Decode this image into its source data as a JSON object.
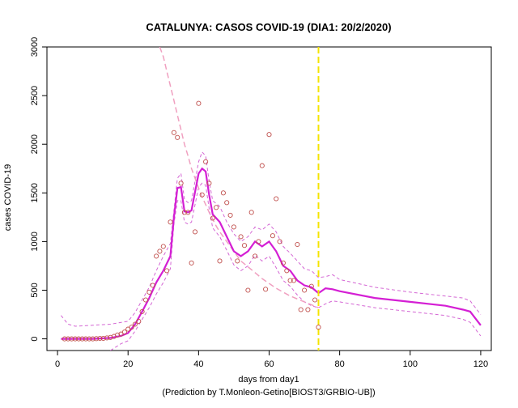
{
  "chart_data": {
    "type": "scatter",
    "title": "CATALUNYA: CASOS COVID-19 (DIA1: 20/2/2020)",
    "xlabel": "days from day1",
    "xlabel2": "(Prediction by T.Monleon-Getino[BIOST3/GRBIO-UB])",
    "ylabel": "cases COVID-19",
    "xlim": [
      -3,
      123
    ],
    "ylim": [
      -120,
      3000
    ],
    "x_ticks": [
      0,
      20,
      40,
      60,
      80,
      100,
      120
    ],
    "y_ticks": [
      0,
      500,
      1000,
      1500,
      2000,
      2500,
      3000
    ],
    "grid": false,
    "vline_x": 74,
    "colors": {
      "points": "#c0504d",
      "fit": "#d41fd4",
      "band": "#d466d4",
      "curve": "#f0a0c0",
      "vline": "#f5e400"
    },
    "series": [
      {
        "kind": "observed",
        "x": [
          2,
          3,
          4,
          5,
          6,
          7,
          8,
          9,
          10,
          11,
          12,
          13,
          14,
          15,
          16,
          17,
          18,
          19,
          20,
          21,
          22,
          23,
          24,
          25,
          26,
          27,
          28,
          29,
          30,
          31,
          32,
          33,
          34,
          35,
          36,
          37,
          38,
          39,
          40,
          41,
          42,
          43,
          44,
          45,
          46,
          47,
          48,
          49,
          50,
          51,
          52,
          53,
          54,
          55,
          56,
          57,
          58,
          59,
          60,
          61,
          62,
          63,
          64,
          65,
          66,
          67,
          68,
          69,
          70,
          71,
          72,
          73,
          74
        ],
        "y": [
          0,
          0,
          0,
          0,
          0,
          0,
          0,
          0,
          0,
          2,
          5,
          5,
          10,
          15,
          25,
          40,
          50,
          70,
          100,
          120,
          150,
          180,
          280,
          400,
          480,
          550,
          850,
          900,
          950,
          700,
          1200,
          2120,
          2070,
          1600,
          1300,
          1300,
          780,
          1100,
          2420,
          1480,
          1820,
          1600,
          1240,
          1350,
          800,
          1500,
          1400,
          1270,
          1150,
          800,
          1050,
          960,
          500,
          1300,
          850,
          1000,
          1780,
          510,
          2100,
          1060,
          1440,
          1000,
          780,
          700,
          600,
          600,
          970,
          300,
          500,
          300,
          540,
          400,
          120
        ]
      },
      {
        "kind": "fit",
        "x": [
          1,
          5,
          10,
          15,
          18,
          20,
          22,
          24,
          26,
          28,
          30,
          32,
          33,
          34,
          35,
          36,
          37,
          38,
          40,
          41,
          42,
          43,
          44,
          46,
          48,
          50,
          52,
          54,
          56,
          58,
          60,
          62,
          64,
          66,
          68,
          70,
          72,
          74,
          76,
          78,
          80,
          90,
          100,
          110,
          115,
          117,
          120
        ],
        "y": [
          0,
          0,
          0,
          10,
          30,
          60,
          150,
          280,
          420,
          580,
          700,
          850,
          1250,
          1550,
          1560,
          1310,
          1300,
          1320,
          1700,
          1750,
          1720,
          1480,
          1280,
          1200,
          1050,
          900,
          850,
          900,
          1000,
          950,
          1000,
          900,
          750,
          700,
          600,
          550,
          530,
          470,
          520,
          510,
          490,
          420,
          380,
          340,
          300,
          280,
          140
        ]
      },
      {
        "kind": "fit-upper",
        "x": [
          1,
          3,
          5,
          10,
          15,
          20,
          22,
          24,
          26,
          28,
          30,
          32,
          33,
          34,
          35,
          36,
          37,
          38,
          40,
          41,
          42,
          43,
          44,
          46,
          48,
          50,
          52,
          54,
          56,
          58,
          60,
          62,
          64,
          66,
          68,
          70,
          72,
          74,
          76,
          78,
          80,
          90,
          100,
          110,
          115,
          117,
          120
        ],
        "y": [
          240,
          150,
          130,
          140,
          150,
          180,
          270,
          400,
          530,
          700,
          850,
          980,
          1320,
          1650,
          1700,
          1430,
          1400,
          1420,
          1820,
          1920,
          1880,
          1620,
          1420,
          1360,
          1200,
          1080,
          1000,
          1050,
          1150,
          1120,
          1180,
          1100,
          950,
          880,
          800,
          720,
          700,
          630,
          640,
          660,
          610,
          530,
          480,
          440,
          420,
          390,
          250
        ]
      },
      {
        "kind": "fit-lower",
        "x": [
          15,
          18,
          20,
          22,
          24,
          26,
          28,
          30,
          32,
          33,
          34,
          35,
          36,
          37,
          38,
          40,
          41,
          42,
          43,
          44,
          46,
          48,
          50,
          52,
          54,
          56,
          58,
          60,
          62,
          64,
          66,
          68,
          70,
          72,
          74,
          76,
          78,
          80,
          90,
          100,
          110,
          115,
          117,
          120
        ],
        "y": [
          -120,
          -50,
          -20,
          80,
          200,
          320,
          460,
          580,
          720,
          1180,
          1420,
          1420,
          1200,
          1180,
          1200,
          1560,
          1600,
          1580,
          1340,
          1140,
          1050,
          910,
          760,
          700,
          750,
          860,
          800,
          850,
          730,
          600,
          540,
          450,
          380,
          340,
          320,
          360,
          390,
          380,
          320,
          280,
          240,
          200,
          170,
          30
        ]
      },
      {
        "kind": "curve",
        "x": [
          29,
          30,
          31,
          32,
          33,
          34,
          35,
          36,
          37,
          38,
          39,
          40,
          41,
          42,
          43,
          44,
          45,
          46,
          47,
          48,
          49,
          50,
          52,
          54,
          56,
          58,
          60,
          62,
          64,
          66,
          68,
          70,
          72,
          74
        ],
        "y": [
          3000,
          2900,
          2750,
          2600,
          2450,
          2300,
          2150,
          2000,
          1880,
          1750,
          1650,
          1550,
          1460,
          1380,
          1300,
          1230,
          1160,
          1100,
          1050,
          1000,
          950,
          900,
          800,
          740,
          680,
          620,
          570,
          520,
          480,
          440,
          410,
          380,
          350,
          320
        ]
      }
    ]
  }
}
